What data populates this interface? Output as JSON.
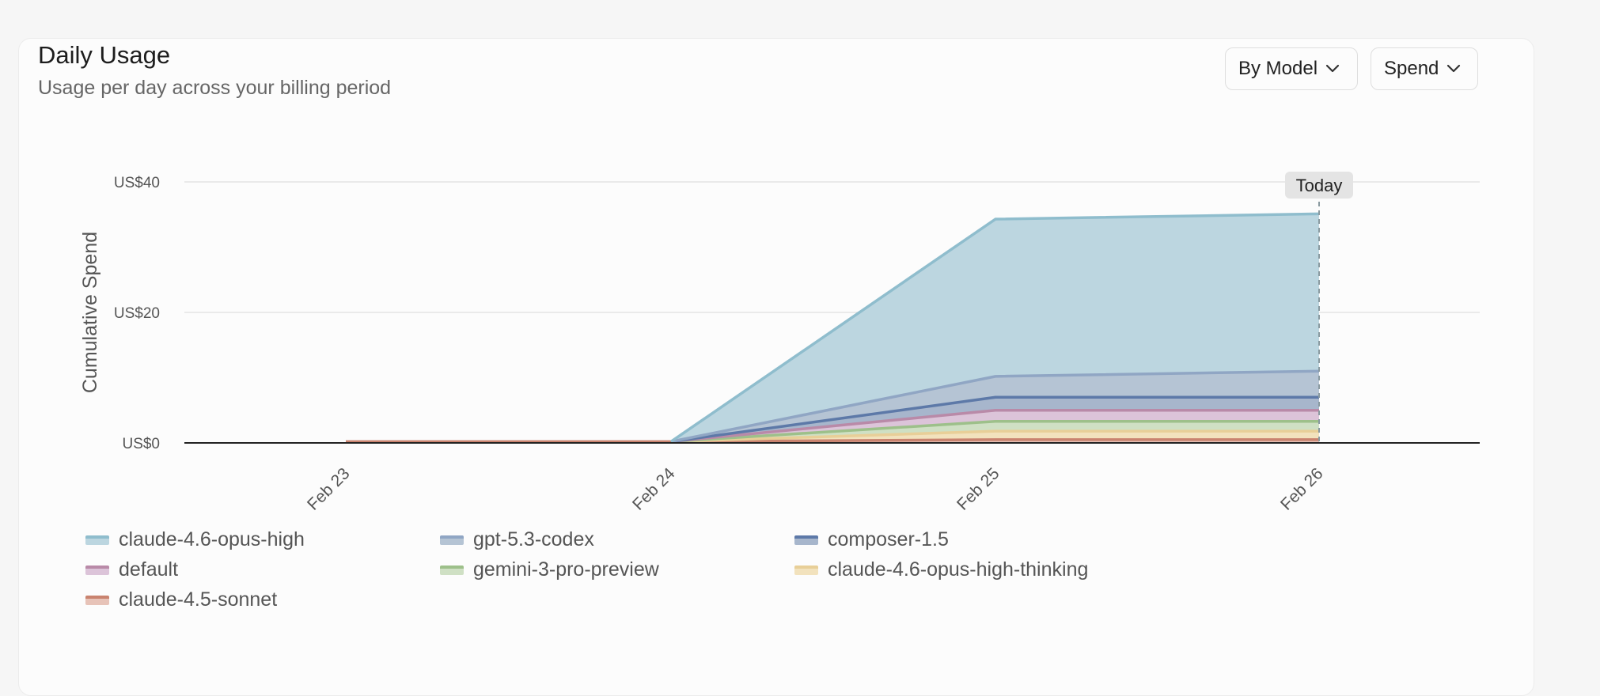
{
  "header": {
    "title": "Daily Usage",
    "subtitle": "Usage per day across your billing period"
  },
  "controls": {
    "group_by": "By Model",
    "metric": "Spend"
  },
  "chart_data": {
    "type": "area",
    "stacked": true,
    "ylabel": "Cumulative Spend",
    "ylim": [
      0,
      40
    ],
    "yticks": [
      0,
      20,
      40
    ],
    "ytick_labels": [
      "US$0",
      "US$20",
      "US$40"
    ],
    "x": [
      "Feb 23",
      "Feb 24",
      "Feb 25",
      "Feb 26"
    ],
    "today_label": "Today",
    "today_index": 3,
    "grid": true,
    "legend_position": "bottom",
    "series": [
      {
        "name": "claude-4.5-sonnet",
        "values": [
          0.2,
          0.2,
          0.5,
          0.5
        ],
        "color": "#c9836f",
        "fill": "#e7c3b8"
      },
      {
        "name": "claude-4.6-opus-high-thinking",
        "values": [
          0,
          0,
          1.3,
          1.3
        ],
        "color": "#e8cf98",
        "fill": "#f2e2bd"
      },
      {
        "name": "gemini-3-pro-preview",
        "values": [
          0,
          0,
          1.5,
          1.5
        ],
        "color": "#9dc08a",
        "fill": "#cfe0c4"
      },
      {
        "name": "default",
        "values": [
          0,
          0,
          1.7,
          1.7
        ],
        "color": "#b98aa8",
        "fill": "#dcc4d9"
      },
      {
        "name": "composer-1.5",
        "values": [
          0,
          0,
          2.0,
          2.0
        ],
        "color": "#5d79a8",
        "fill": "#a7b6cc"
      },
      {
        "name": "gpt-5.3-codex",
        "values": [
          0,
          0,
          3.2,
          4.0
        ],
        "color": "#90a6c4",
        "fill": "#b5c4d4"
      },
      {
        "name": "claude-4.6-opus-high",
        "values": [
          0,
          0,
          24.1,
          24.1
        ],
        "color": "#8fbdcd",
        "fill": "#bcd6e0"
      }
    ]
  }
}
